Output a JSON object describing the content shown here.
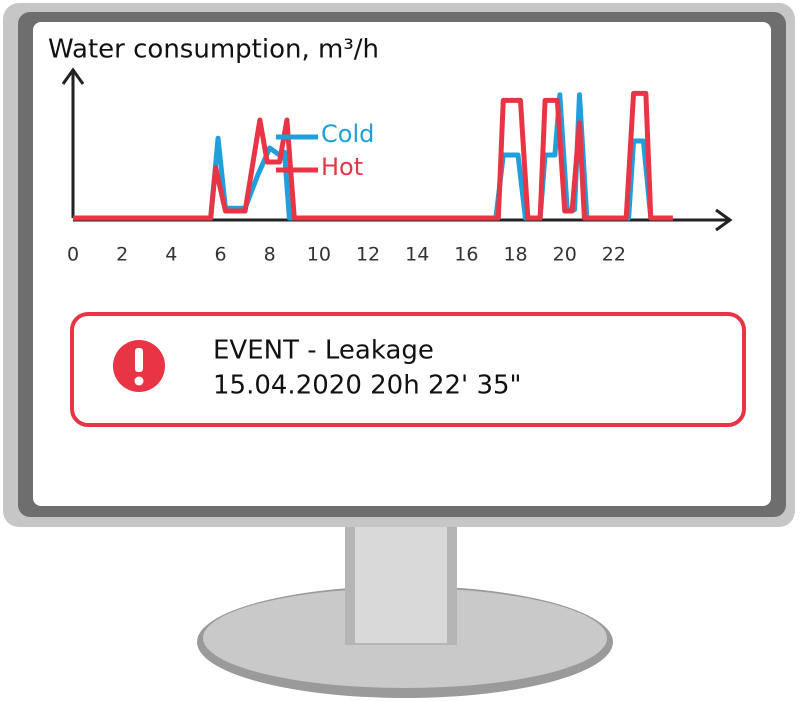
{
  "chart_data": {
    "type": "line",
    "title": "Water consumption, m³/h",
    "xlim": [
      0,
      26.6
    ],
    "xticks": [
      0,
      2,
      4,
      6,
      8,
      10,
      12,
      14,
      16,
      18,
      20,
      22
    ],
    "ylim": [
      0,
      1
    ],
    "series": [
      {
        "name": "Cold",
        "color": "#1fa0dc",
        "x": [
          0,
          5.6,
          5.9,
          6.2,
          7,
          7.5,
          8,
          8.4,
          8.6,
          8.8,
          17.2,
          17.5,
          18.1,
          18.4,
          19.0,
          19.2,
          19.6,
          19.8,
          20.1,
          20.4,
          20.6,
          20.9,
          22.6,
          22.8,
          23.2,
          23.5,
          24.3
        ],
        "values": [
          0,
          0,
          0.57,
          0.07,
          0.07,
          0.3,
          0.5,
          0.45,
          0.47,
          0,
          0,
          0.45,
          0.45,
          0,
          0,
          0.45,
          0.45,
          0.88,
          0.06,
          0.06,
          0.88,
          0,
          0,
          0.55,
          0.55,
          0,
          0
        ]
      },
      {
        "name": "Hot",
        "color": "#e83444",
        "x": [
          0,
          5.6,
          5.8,
          6.2,
          7,
          7.6,
          7.9,
          8.4,
          8.7,
          9,
          17.3,
          17.5,
          18.2,
          18.5,
          19.0,
          19.2,
          19.7,
          20.0,
          20.3,
          20.6,
          20.8,
          22.5,
          22.8,
          23.3,
          23.5,
          24.4
        ],
        "values": [
          0,
          0,
          0.36,
          0.05,
          0.05,
          0.7,
          0.4,
          0.4,
          0.7,
          0,
          0,
          0.84,
          0.84,
          0,
          0,
          0.84,
          0.84,
          0.05,
          0.05,
          0.68,
          0,
          0,
          0.89,
          0.89,
          0,
          0
        ]
      }
    ]
  },
  "event": {
    "title": "EVENT - Leakage",
    "timestamp": "15.04.2020 20h 22' 35\""
  }
}
